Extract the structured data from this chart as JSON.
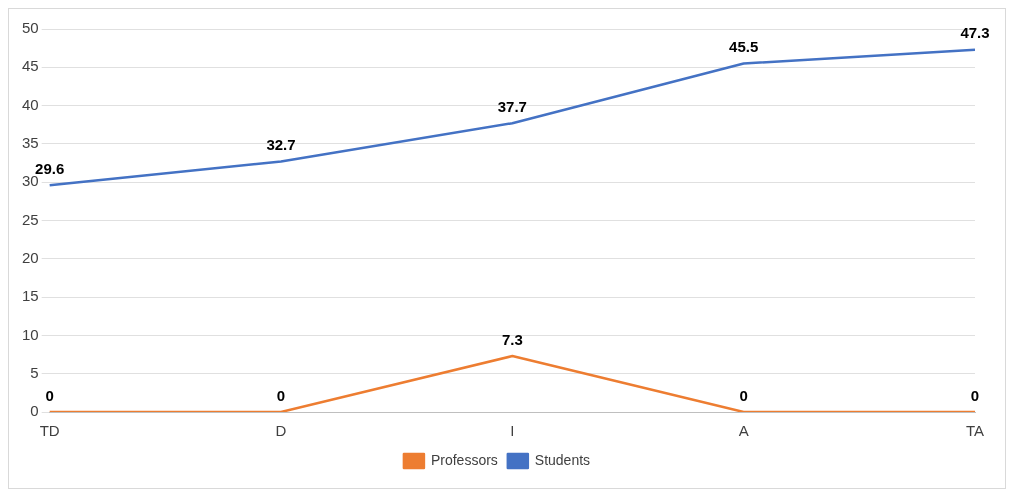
{
  "chart_data": {
    "type": "line",
    "categories": [
      "TD",
      "D",
      "I",
      "A",
      "TA"
    ],
    "series": [
      {
        "name": "Professors",
        "color": "#ed7d31",
        "values": [
          0,
          0,
          7.3,
          0,
          0
        ]
      },
      {
        "name": "Students",
        "color": "#4472c4",
        "values": [
          29.6,
          32.7,
          37.7,
          45.5,
          47.3
        ]
      }
    ],
    "ylim": [
      0,
      50
    ],
    "yticks": [
      0,
      5,
      10,
      15,
      20,
      25,
      30,
      35,
      40,
      45,
      50
    ],
    "grid": "y",
    "legend": "bottom",
    "data_labels": true,
    "marker": "none",
    "line_style": "solid"
  }
}
